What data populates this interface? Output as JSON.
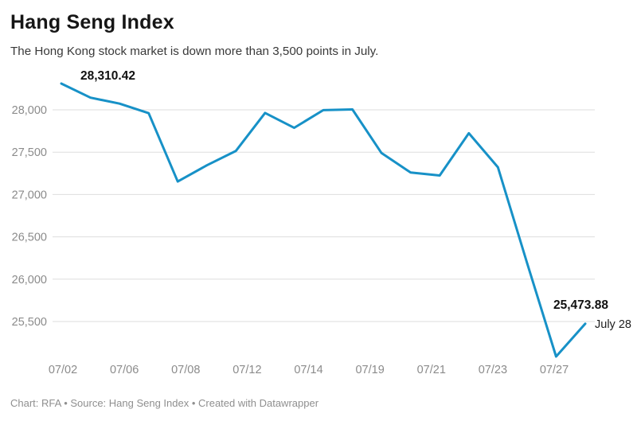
{
  "header": {
    "title": "Hang Seng Index",
    "subtitle": "The Hong Kong stock market is down more than 3,500 points in July."
  },
  "chart_data": {
    "type": "line",
    "title": "Hang Seng Index",
    "subtitle": "The Hong Kong stock market is down more than 3,500 points in July.",
    "x": [
      "07/02",
      "07/05",
      "07/06",
      "07/07",
      "07/08",
      "07/09",
      "07/12",
      "07/13",
      "07/14",
      "07/15",
      "07/16",
      "07/19",
      "07/20",
      "07/21",
      "07/22",
      "07/23",
      "07/26",
      "07/27",
      "07/28"
    ],
    "series": [
      {
        "name": "Hang Seng Index",
        "values": [
          28310.42,
          28143.5,
          28072.86,
          27960.62,
          27153.13,
          27344.54,
          27515.24,
          27963.41,
          27787.46,
          27996.27,
          28004.68,
          27489.78,
          27259.25,
          27224.58,
          27723.84,
          27321.98,
          26192.32,
          25086.43,
          25473.88
        ]
      }
    ],
    "x_tick_labels": [
      "07/02",
      "07/06",
      "07/08",
      "07/12",
      "07/14",
      "07/19",
      "07/21",
      "07/23",
      "07/27"
    ],
    "y_ticks": [
      {
        "value": 28000,
        "label": "28,000"
      },
      {
        "value": 27500,
        "label": "27,500"
      },
      {
        "value": 27000,
        "label": "27,000"
      },
      {
        "value": 26500,
        "label": "26,500"
      },
      {
        "value": 26000,
        "label": "26,000"
      },
      {
        "value": 25500,
        "label": "25,500"
      }
    ],
    "ylim": [
      25000,
      28400
    ],
    "grid": "horizontal",
    "legend": false,
    "annotations": {
      "start_value": "28,310.42",
      "end_value": "25,473.88",
      "end_date": "July 28"
    },
    "line_color": "#1791c7"
  },
  "footer": {
    "text": "Chart: RFA • Source: Hang Seng Index • Created with Datawrapper"
  },
  "colors": {
    "line": "#1791c7",
    "grid": "#dedede",
    "axis_text": "#8b8b8b",
    "title": "#161616",
    "subtitle": "#393939",
    "footer": "#8f8f8f"
  }
}
